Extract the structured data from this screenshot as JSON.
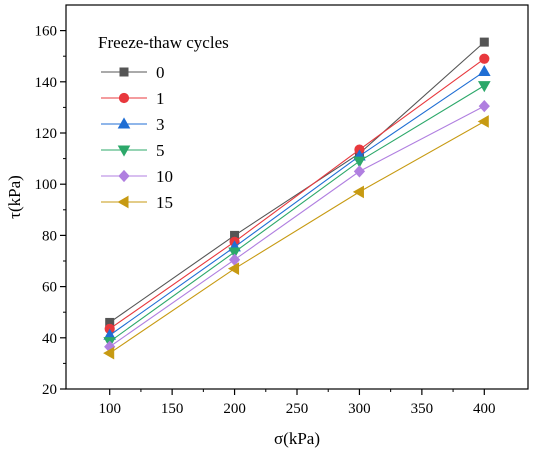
{
  "chart_data": {
    "type": "line",
    "title": "",
    "xlabel": "σ(kPa)",
    "ylabel": "τ(kPa)",
    "xlim": [
      65,
      435
    ],
    "ylim": [
      20,
      170
    ],
    "x_ticks": [
      100,
      150,
      200,
      250,
      300,
      350,
      400
    ],
    "y_ticks": [
      20,
      40,
      60,
      80,
      100,
      120,
      140,
      160
    ],
    "x_tick_labels": [
      "100",
      "150",
      "200",
      "250",
      "300",
      "350",
      "400"
    ],
    "y_tick_labels": [
      "20",
      "40",
      "60",
      "80",
      "100",
      "120",
      "140",
      "160"
    ],
    "legend_title": "Freeze-thaw cycles",
    "legend_position": "top-left",
    "grid": false,
    "x": [
      100,
      200,
      300,
      400
    ],
    "series": [
      {
        "name": "0",
        "color": "#555555",
        "marker": "square",
        "values": [
          46.0,
          80.0,
          112.0,
          155.5
        ]
      },
      {
        "name": "1",
        "color": "#e8383d",
        "marker": "circle",
        "values": [
          43.5,
          77.5,
          113.5,
          149.0
        ]
      },
      {
        "name": "3",
        "color": "#1f6ed4",
        "marker": "triangle-up",
        "values": [
          41.0,
          75.5,
          111.0,
          144.0
        ]
      },
      {
        "name": "5",
        "color": "#2ca86a",
        "marker": "triangle-down",
        "values": [
          38.5,
          73.5,
          109.0,
          138.5
        ]
      },
      {
        "name": "10",
        "color": "#b07fe0",
        "marker": "diamond",
        "values": [
          36.5,
          70.5,
          105.0,
          130.5
        ]
      },
      {
        "name": "15",
        "color": "#c79a12",
        "marker": "triangle-left",
        "values": [
          34.0,
          67.0,
          97.0,
          124.5
        ]
      }
    ]
  }
}
